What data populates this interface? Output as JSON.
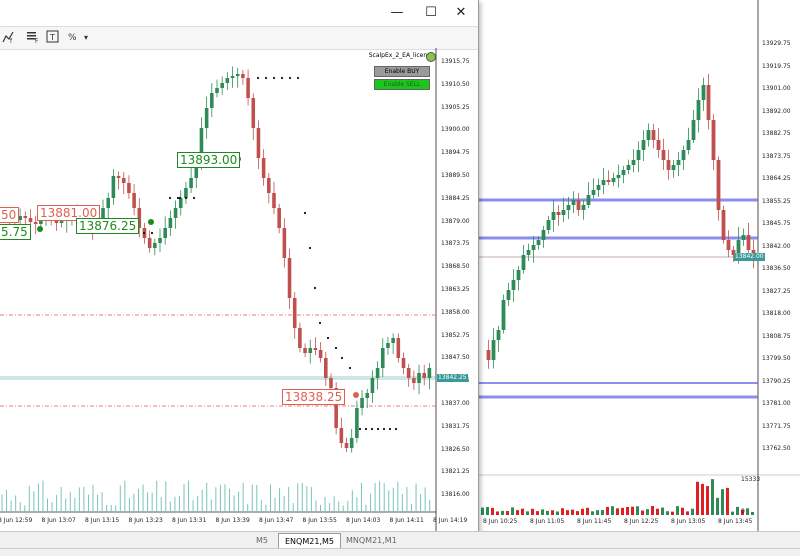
{
  "front_window": {
    "window_controls": {
      "minimize": "—",
      "maximize": "☐",
      "close": "✕"
    },
    "toolbar": {
      "icons": [
        "indicators-icon",
        "templates-icon",
        "text-icon",
        "percent-icon"
      ],
      "percent_label": "%",
      "dropdown": "▾"
    },
    "ea_panel": {
      "title": "ScalpEx_2_EA_license",
      "enable_buy": "Enable BUY",
      "enable_sell": "Enable SELL"
    },
    "price_axis": [
      "13915.75",
      "13910.50",
      "13905.25",
      "13900.00",
      "13894.75",
      "13889.50",
      "13884.25",
      "13879.00",
      "13873.75",
      "13868.50",
      "13863.25",
      "13858.00",
      "13852.75",
      "13847.50",
      "13842.25",
      "13837.00",
      "13831.75",
      "13826.50",
      "13821.25",
      "13816.00"
    ],
    "current_price": "13842.25",
    "time_axis": [
      "8 Jun 12:59",
      "8 Jun 13:07",
      "8 Jun 13:15",
      "8 Jun 13:23",
      "8 Jun 13:31",
      "8 Jun 13:39",
      "8 Jun 13:47",
      "8 Jun 13:55",
      "8 Jun 14:03",
      "8 Jun 14:11",
      "8 Jun 14:19"
    ],
    "time_axis_lower": [
      "8 Jun 12:59",
      "8 Jun 13:07",
      "8 Jun 13:15",
      "8 Jun 13:23",
      "8 Jun 13:31",
      "8 Jun 13:39",
      "8 Jun 13:47",
      "8 Jun 13:55",
      "8 Jun 14:03",
      "8 Jun 14:11",
      "8 Jun 14:19"
    ],
    "annotations": {
      "a1": "13893.00",
      "a2": "13881.00",
      "a3": "13876.25",
      "a4": "13838.25",
      "left1": "50",
      "left2": "5.75"
    }
  },
  "back_window": {
    "price_axis": [
      "13929.75",
      "13919.75",
      "13901.00",
      "13892.00",
      "13882.75",
      "13873.75",
      "13864.25",
      "13855.25",
      "13845.75",
      "13842.00",
      "13836.50",
      "13827.25",
      "13818.00",
      "13808.75",
      "13799.50",
      "13790.25",
      "13781.00",
      "13771.75",
      "13762.50"
    ],
    "current_price": "13842.00",
    "time_axis": [
      "8 Jun 10:25",
      "8 Jun 11:05",
      "8 Jun 11:45",
      "8 Jun 12:25",
      "8 Jun 13:05",
      "8 Jun 13:45"
    ],
    "volume_axis": [
      "15333",
      "0"
    ]
  },
  "tabs": [
    "M5",
    "ENQM21,M5",
    "MNQM21,M1"
  ],
  "colors": {
    "bull": "#2e8b57",
    "bear": "#c0504d",
    "level_blue": "#6d72e8",
    "level_red": "#e05a4a",
    "annot_green": "#1e8a1e",
    "annot_red": "#e06050"
  }
}
